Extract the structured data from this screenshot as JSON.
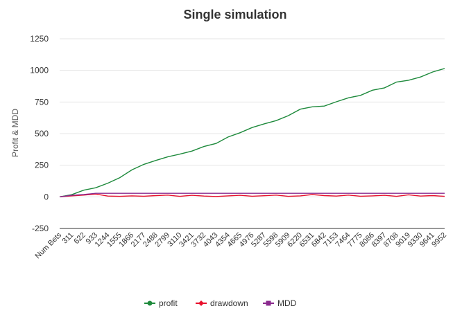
{
  "chart_data": {
    "type": "line",
    "title": "Single simulation",
    "ylabel": "Profit & MDD",
    "ylim": [
      -250,
      1250
    ],
    "y_ticks": [
      "-250",
      "0",
      "250",
      "500",
      "750",
      "1000",
      "1250"
    ],
    "x_categories": [
      "Num Bets",
      "311",
      "622",
      "933",
      "1244",
      "1555",
      "1866",
      "2177",
      "2488",
      "2799",
      "3110",
      "3421",
      "3732",
      "4043",
      "4354",
      "4665",
      "4976",
      "5287",
      "5598",
      "5909",
      "6220",
      "6531",
      "6842",
      "7153",
      "7464",
      "7775",
      "8086",
      "8397",
      "8708",
      "9019",
      "9330",
      "9641",
      "9952"
    ],
    "grid": true,
    "legend_position": "bottom",
    "series": [
      {
        "name": "profit",
        "color": "#1e8a3c",
        "marker": "circle",
        "x": [
          0,
          311,
          622,
          933,
          1244,
          1555,
          1866,
          2177,
          2488,
          2799,
          3110,
          3421,
          3732,
          4043,
          4354,
          4665,
          4976,
          5287,
          5598,
          5909,
          6220,
          6531,
          6842,
          7153,
          7464,
          7775,
          8086,
          8397,
          8708,
          9019,
          9330,
          9641,
          9952
        ],
        "y": [
          0,
          20,
          50,
          75,
          105,
          155,
          210,
          260,
          285,
          320,
          335,
          365,
          395,
          425,
          470,
          510,
          545,
          580,
          600,
          645,
          690,
          715,
          715,
          755,
          780,
          805,
          840,
          865,
          905,
          925,
          945,
          990,
          1015
        ]
      },
      {
        "name": "drawdown",
        "color": "#e8102c",
        "marker": "diamond",
        "x": [
          0,
          311,
          622,
          933,
          1244,
          1555,
          1866,
          2177,
          2488,
          2799,
          3110,
          3421,
          3732,
          4043,
          4354,
          4665,
          4976,
          5287,
          5598,
          5909,
          6220,
          6531,
          6842,
          7153,
          7464,
          7775,
          8086,
          8397,
          8708,
          9019,
          9330,
          9641,
          9952
        ],
        "y": [
          0,
          8,
          14,
          22,
          6,
          4,
          8,
          5,
          10,
          14,
          4,
          12,
          6,
          3,
          8,
          12,
          5,
          9,
          14,
          4,
          8,
          18,
          10,
          6,
          14,
          5,
          8,
          12,
          4,
          16,
          6,
          10,
          4
        ]
      },
      {
        "name": "MDD",
        "color": "#8a2a8e",
        "marker": "square",
        "x": [
          0,
          311,
          622,
          933,
          9952
        ],
        "y": [
          0,
          12,
          18,
          28,
          28
        ]
      }
    ]
  }
}
